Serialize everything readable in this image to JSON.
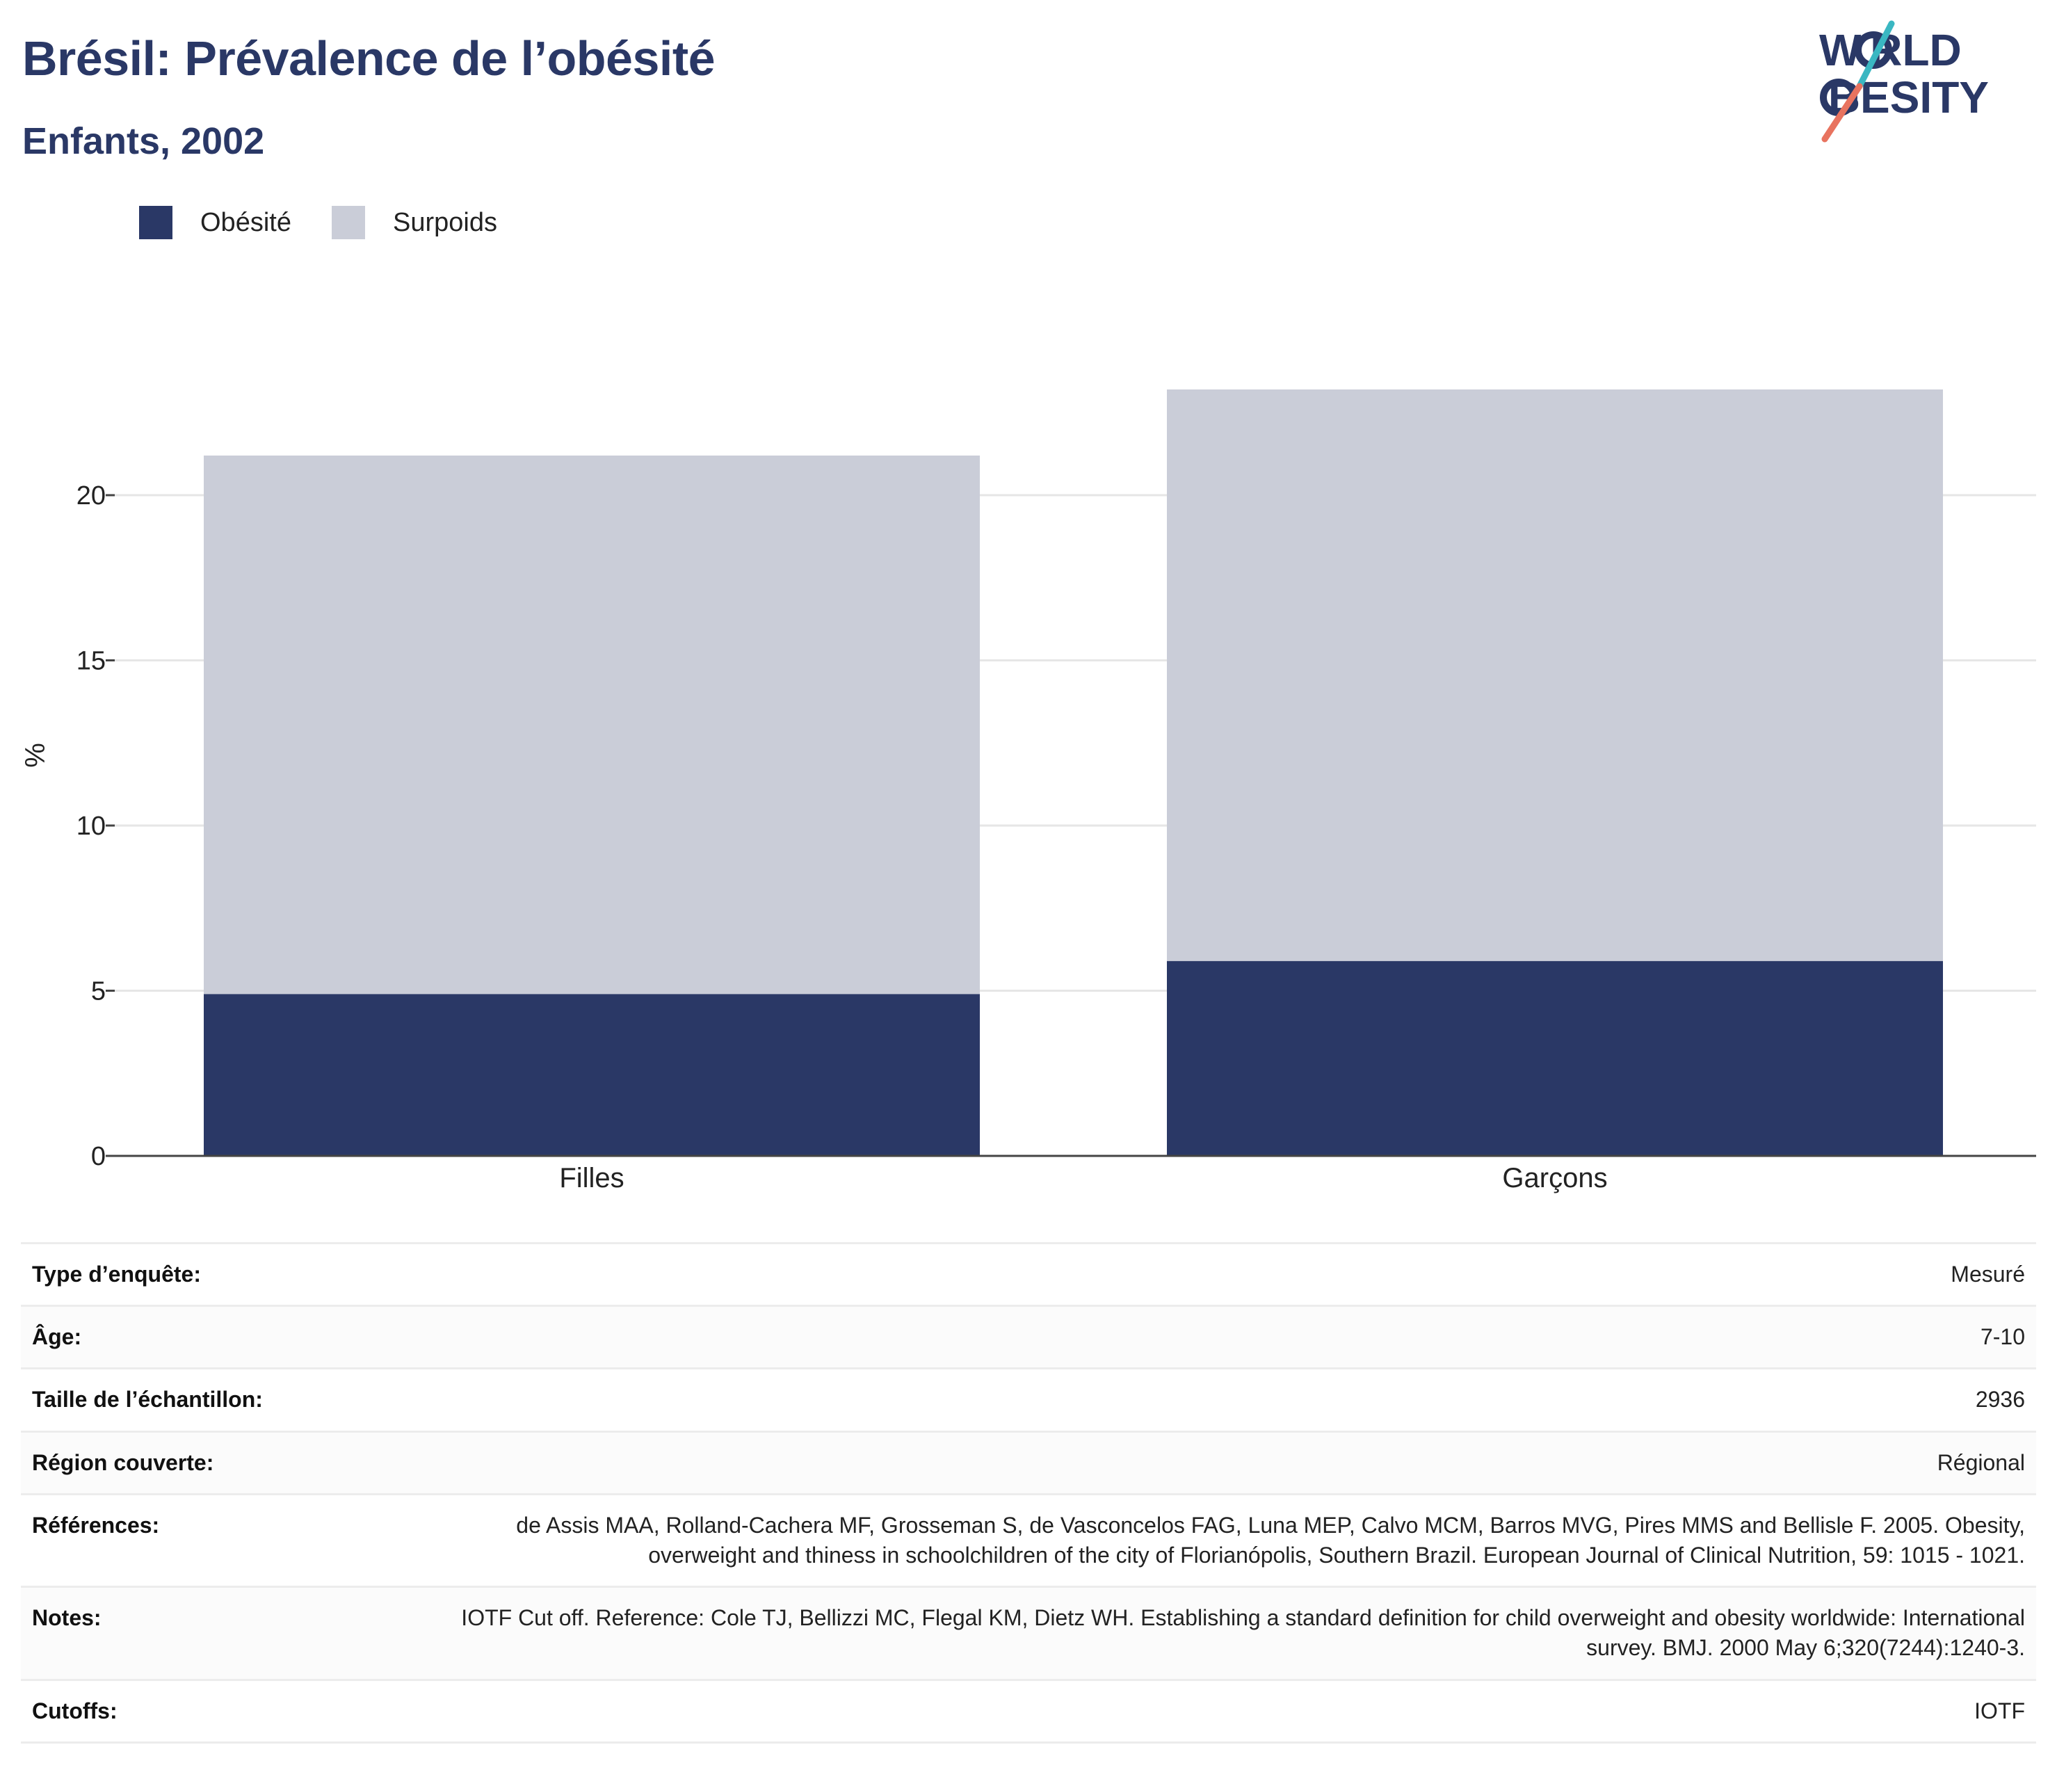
{
  "header": {
    "title": "Brésil: Prévalence de l’obésité",
    "subtitle": "Enfants, 2002"
  },
  "logo": {
    "line1": "W RLD",
    "line2": " BESITY",
    "colors": {
      "navy": "#2a3866",
      "teal": "#3ab7c2",
      "coral": "#e8735f"
    }
  },
  "legend": [
    {
      "label": "Obésité",
      "color": "#2a3866"
    },
    {
      "label": "Surpoids",
      "color": "#cacdd8"
    }
  ],
  "chart_data": {
    "type": "bar",
    "stacked": true,
    "categories": [
      "Filles",
      "Garçons"
    ],
    "series": [
      {
        "name": "Obésité",
        "color": "#2a3866",
        "values": [
          4.9,
          5.9
        ]
      },
      {
        "name": "Surpoids",
        "color": "#cacdd8",
        "values": [
          16.3,
          17.3
        ]
      }
    ],
    "ylabel": "%",
    "xlabel": "",
    "ylim": [
      0,
      25
    ],
    "yticks": [
      0,
      5,
      10,
      15,
      20
    ],
    "grid": true,
    "legend_position": "top-left"
  },
  "info": [
    {
      "label": "Type d’enquête:",
      "value": "Mesuré"
    },
    {
      "label": "Âge:",
      "value": "7-10"
    },
    {
      "label": "Taille de l’échantillon:",
      "value": "2936"
    },
    {
      "label": "Région couverte:",
      "value": "Régional"
    },
    {
      "label": "Références:",
      "value": "de Assis MAA, Rolland-Cachera MF, Grosseman S, de Vasconcelos FAG, Luna MEP, Calvo MCM, Barros MVG, Pires MMS and Bellisle F. 2005. Obesity, overweight and thiness in schoolchildren of the city of Florianópolis, Southern Brazil. European Journal of Clinical Nutrition, 59: 1015 - 1021."
    },
    {
      "label": "Notes:",
      "value": "IOTF Cut off. Reference: Cole TJ, Bellizzi MC, Flegal KM, Dietz WH. Establishing a standard definition for child overweight and obesity worldwide: International survey. BMJ. 2000 May 6;320(7244):1240-3."
    },
    {
      "label": "Cutoffs:",
      "value": "IOTF"
    }
  ]
}
